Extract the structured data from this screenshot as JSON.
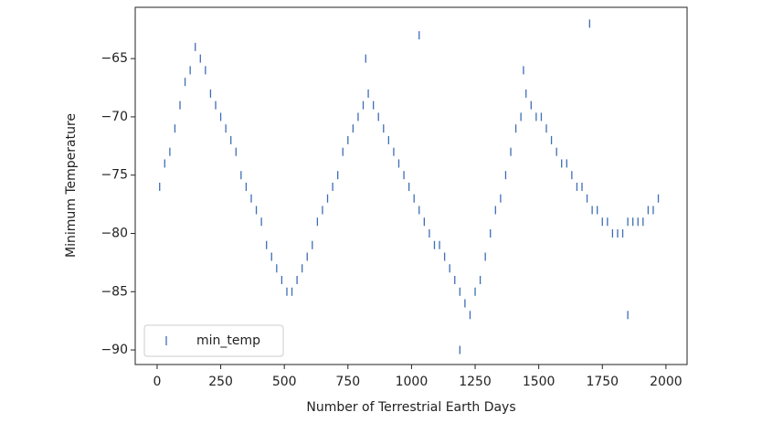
{
  "chart_data": {
    "type": "scatter",
    "xlabel": "Number of Terrestrial Earth Days",
    "ylabel": "Minimum Temperature",
    "legend": "lower left",
    "series": [
      {
        "name": "min_temp",
        "color": "#3d6db5",
        "marker": "|",
        "x": [
          10,
          30,
          50,
          70,
          90,
          110,
          130,
          150,
          170,
          190,
          210,
          230,
          250,
          270,
          290,
          310,
          330,
          350,
          370,
          390,
          410,
          430,
          450,
          470,
          490,
          510,
          530,
          550,
          570,
          590,
          610,
          630,
          650,
          670,
          690,
          710,
          730,
          750,
          770,
          790,
          810,
          830,
          850,
          870,
          890,
          910,
          930,
          950,
          970,
          990,
          1010,
          1030,
          1050,
          1070,
          1090,
          1110,
          1130,
          1150,
          1170,
          1190,
          1210,
          1230,
          1250,
          1270,
          1290,
          1310,
          1330,
          1350,
          1370,
          1390,
          1410,
          1430,
          1450,
          1470,
          1490,
          1510,
          1530,
          1550,
          1570,
          1590,
          1610,
          1630,
          1650,
          1670,
          1690,
          1710,
          1730,
          1750,
          1770,
          1790,
          1810,
          1830,
          1850,
          1870,
          1890,
          1910,
          1930,
          1950,
          1970,
          1030,
          1700,
          1850,
          1190,
          820,
          1440
        ],
        "values": [
          -76,
          -74,
          -73,
          -71,
          -69,
          -67,
          -66,
          -64,
          -65,
          -66,
          -68,
          -69,
          -70,
          -71,
          -72,
          -73,
          -75,
          -76,
          -77,
          -78,
          -79,
          -81,
          -82,
          -83,
          -84,
          -85,
          -85,
          -84,
          -83,
          -82,
          -81,
          -79,
          -78,
          -77,
          -76,
          -75,
          -73,
          -72,
          -71,
          -70,
          -69,
          -68,
          -69,
          -70,
          -71,
          -72,
          -73,
          -74,
          -75,
          -76,
          -77,
          -78,
          -79,
          -80,
          -81,
          -81,
          -82,
          -83,
          -84,
          -85,
          -86,
          -87,
          -85,
          -84,
          -82,
          -80,
          -78,
          -77,
          -75,
          -73,
          -71,
          -70,
          -68,
          -69,
          -70,
          -70,
          -71,
          -72,
          -73,
          -74,
          -74,
          -75,
          -76,
          -76,
          -77,
          -78,
          -78,
          -79,
          -79,
          -80,
          -80,
          -80,
          -79,
          -79,
          -79,
          -79,
          -78,
          -78,
          -77,
          -63,
          -62,
          -87,
          -90,
          -65,
          -66
        ]
      }
    ],
    "xlim": [
      -86,
      2083
    ],
    "ylim": [
      -91.25,
      -60.6
    ],
    "xticks": [
      0,
      250,
      500,
      750,
      1000,
      1250,
      1500,
      1750,
      2000
    ],
    "yticks": [
      {
        "value": -90,
        "label": "−90"
      },
      {
        "value": -85,
        "label": "−85"
      },
      {
        "value": -80,
        "label": "−80"
      },
      {
        "value": -75,
        "label": "−75"
      },
      {
        "value": -70,
        "label": "−70"
      },
      {
        "value": -65,
        "label": "−65"
      }
    ]
  }
}
